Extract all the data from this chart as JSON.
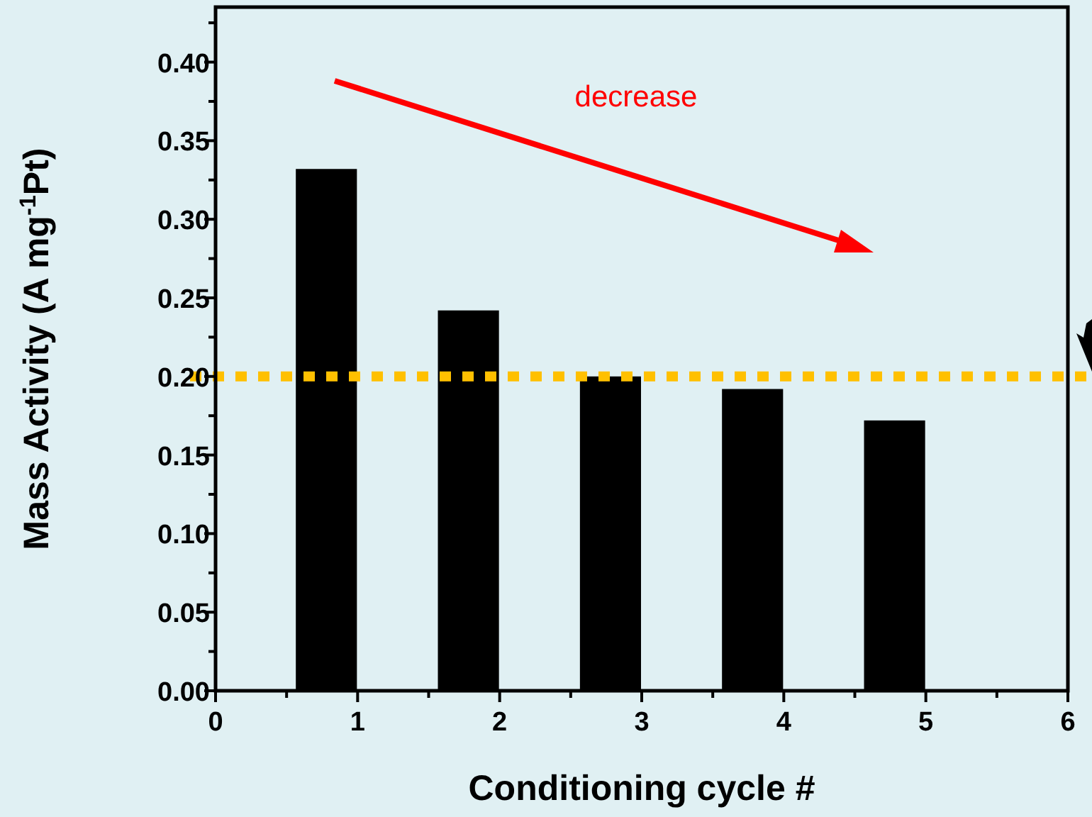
{
  "chart_data": {
    "type": "bar",
    "xlabel": "Conditioning cycle #",
    "ylabel": "Mass Activity (A mg$^{-1}$Pt)",
    "x": [
      0.78,
      1.78,
      2.78,
      3.78,
      4.78
    ],
    "values": [
      0.332,
      0.242,
      0.2,
      0.192,
      0.172
    ],
    "color": "#000000",
    "xlim": [
      0,
      6
    ],
    "xticks": [
      0,
      {
        "value": 0.5,
        "label": null
      },
      1,
      {
        "value": 1.5,
        "label": null
      },
      2,
      {
        "value": 2.5,
        "label": null
      },
      3,
      {
        "value": 3.5,
        "label": null
      },
      4,
      {
        "value": 4.5,
        "label": null
      },
      5,
      {
        "value": 5.5,
        "label": null
      },
      6
    ],
    "ylim": [
      0,
      0.435
    ],
    "yticks": [
      {
        "value": 0,
        "label": "0.00"
      },
      {
        "value": 0.025,
        "label": null
      },
      {
        "value": 0.05,
        "label": "0.05"
      },
      {
        "value": 0.075,
        "label": null
      },
      {
        "value": 0.1,
        "label": "0.10"
      },
      {
        "value": 0.125,
        "label": null
      },
      {
        "value": 0.15,
        "label": "0.15"
      },
      {
        "value": 0.175,
        "label": null
      },
      {
        "value": 0.2,
        "label": "0.20"
      },
      {
        "value": 0.225,
        "label": null
      },
      {
        "value": 0.25,
        "label": "0.25"
      },
      {
        "value": 0.275,
        "label": null
      },
      {
        "value": 0.3,
        "label": "0.30"
      },
      {
        "value": 0.325,
        "label": null
      },
      {
        "value": 0.35,
        "label": "0.35"
      },
      {
        "value": 0.375,
        "label": null
      },
      {
        "value": 0.4,
        "label": "0.40"
      },
      {
        "value": 0.425,
        "label": null
      }
    ],
    "ref_lines": [
      {
        "axis": "y",
        "value": 0.2,
        "color": "#ffc000",
        "line_style": "dotted"
      }
    ],
    "annotations": [
      "decrease"
    ],
    "grid": false
  }
}
